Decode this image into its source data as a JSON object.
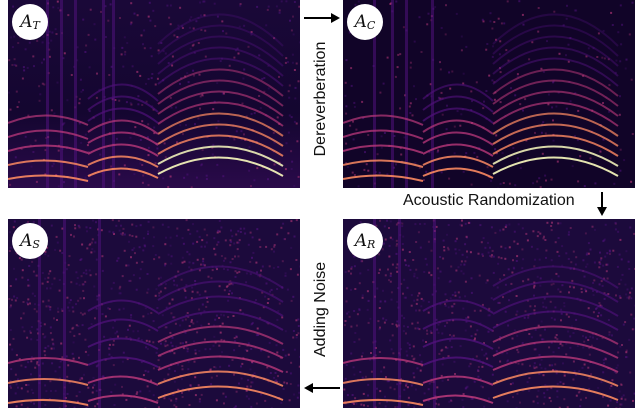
{
  "panels": {
    "top_left": {
      "badge_main": "A",
      "badge_sub": "T"
    },
    "top_right": {
      "badge_main": "A",
      "badge_sub": "C"
    },
    "bottom_left": {
      "badge_main": "A",
      "badge_sub": "S"
    },
    "bottom_right": {
      "badge_main": "A",
      "badge_sub": "R"
    }
  },
  "labels": {
    "dereverberation": "Dereverberation",
    "acoustic_randomization": "Acoustic Randomization",
    "adding_noise": "Adding Noise"
  },
  "colors": {
    "background_dark": "#0c0424",
    "magma_purple": "#51127c",
    "magma_magenta": "#b73779",
    "magma_orange": "#fc8961",
    "magma_yellow": "#fcfdbf"
  }
}
